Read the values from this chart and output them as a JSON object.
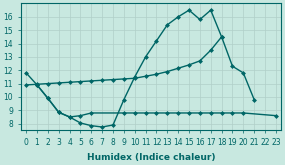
{
  "xlabel": "Humidex (Indice chaleur)",
  "bg_color": "#c8e8e0",
  "line_color": "#006666",
  "grid_color": "#b0cfc8",
  "xlim": [
    -0.5,
    23.5
  ],
  "ylim": [
    7.5,
    17.0
  ],
  "yticks": [
    8,
    9,
    10,
    11,
    12,
    13,
    14,
    15,
    16
  ],
  "xticks": [
    0,
    1,
    2,
    3,
    4,
    5,
    6,
    7,
    8,
    9,
    10,
    11,
    12,
    13,
    14,
    15,
    16,
    17,
    18,
    19,
    20,
    21,
    22,
    23
  ],
  "line1_x": [
    0,
    1,
    2,
    3,
    4,
    5,
    6,
    7,
    8,
    9,
    10,
    11,
    12,
    13,
    14,
    15,
    16,
    17,
    18,
    19,
    20,
    21
  ],
  "line1_y": [
    11.8,
    10.9,
    9.9,
    8.85,
    8.5,
    8.05,
    7.85,
    7.75,
    7.9,
    9.8,
    11.5,
    13.0,
    14.2,
    15.4,
    16.0,
    16.5,
    15.8,
    16.5,
    14.5,
    12.3,
    11.8,
    9.8
  ],
  "line2_x": [
    0,
    1,
    2,
    3,
    4,
    5,
    6,
    7,
    8,
    9,
    10,
    11,
    12,
    13,
    14,
    15,
    16,
    17,
    18
  ],
  "line2_y": [
    10.9,
    10.95,
    11.0,
    11.05,
    11.1,
    11.15,
    11.2,
    11.25,
    11.3,
    11.35,
    11.4,
    11.55,
    11.7,
    11.9,
    12.15,
    12.4,
    12.7,
    13.5,
    14.5
  ],
  "line3_x": [
    1,
    2,
    3,
    4,
    5,
    6,
    9,
    10,
    11,
    12,
    13,
    14,
    15,
    16,
    17,
    18,
    19,
    20,
    23
  ],
  "line3_y": [
    10.9,
    9.9,
    8.85,
    8.5,
    8.6,
    8.8,
    8.8,
    8.8,
    8.8,
    8.8,
    8.8,
    8.8,
    8.8,
    8.8,
    8.8,
    8.8,
    8.8,
    8.8,
    8.6
  ],
  "lw": 1.0,
  "ms": 2.5,
  "font_size": 6.5
}
